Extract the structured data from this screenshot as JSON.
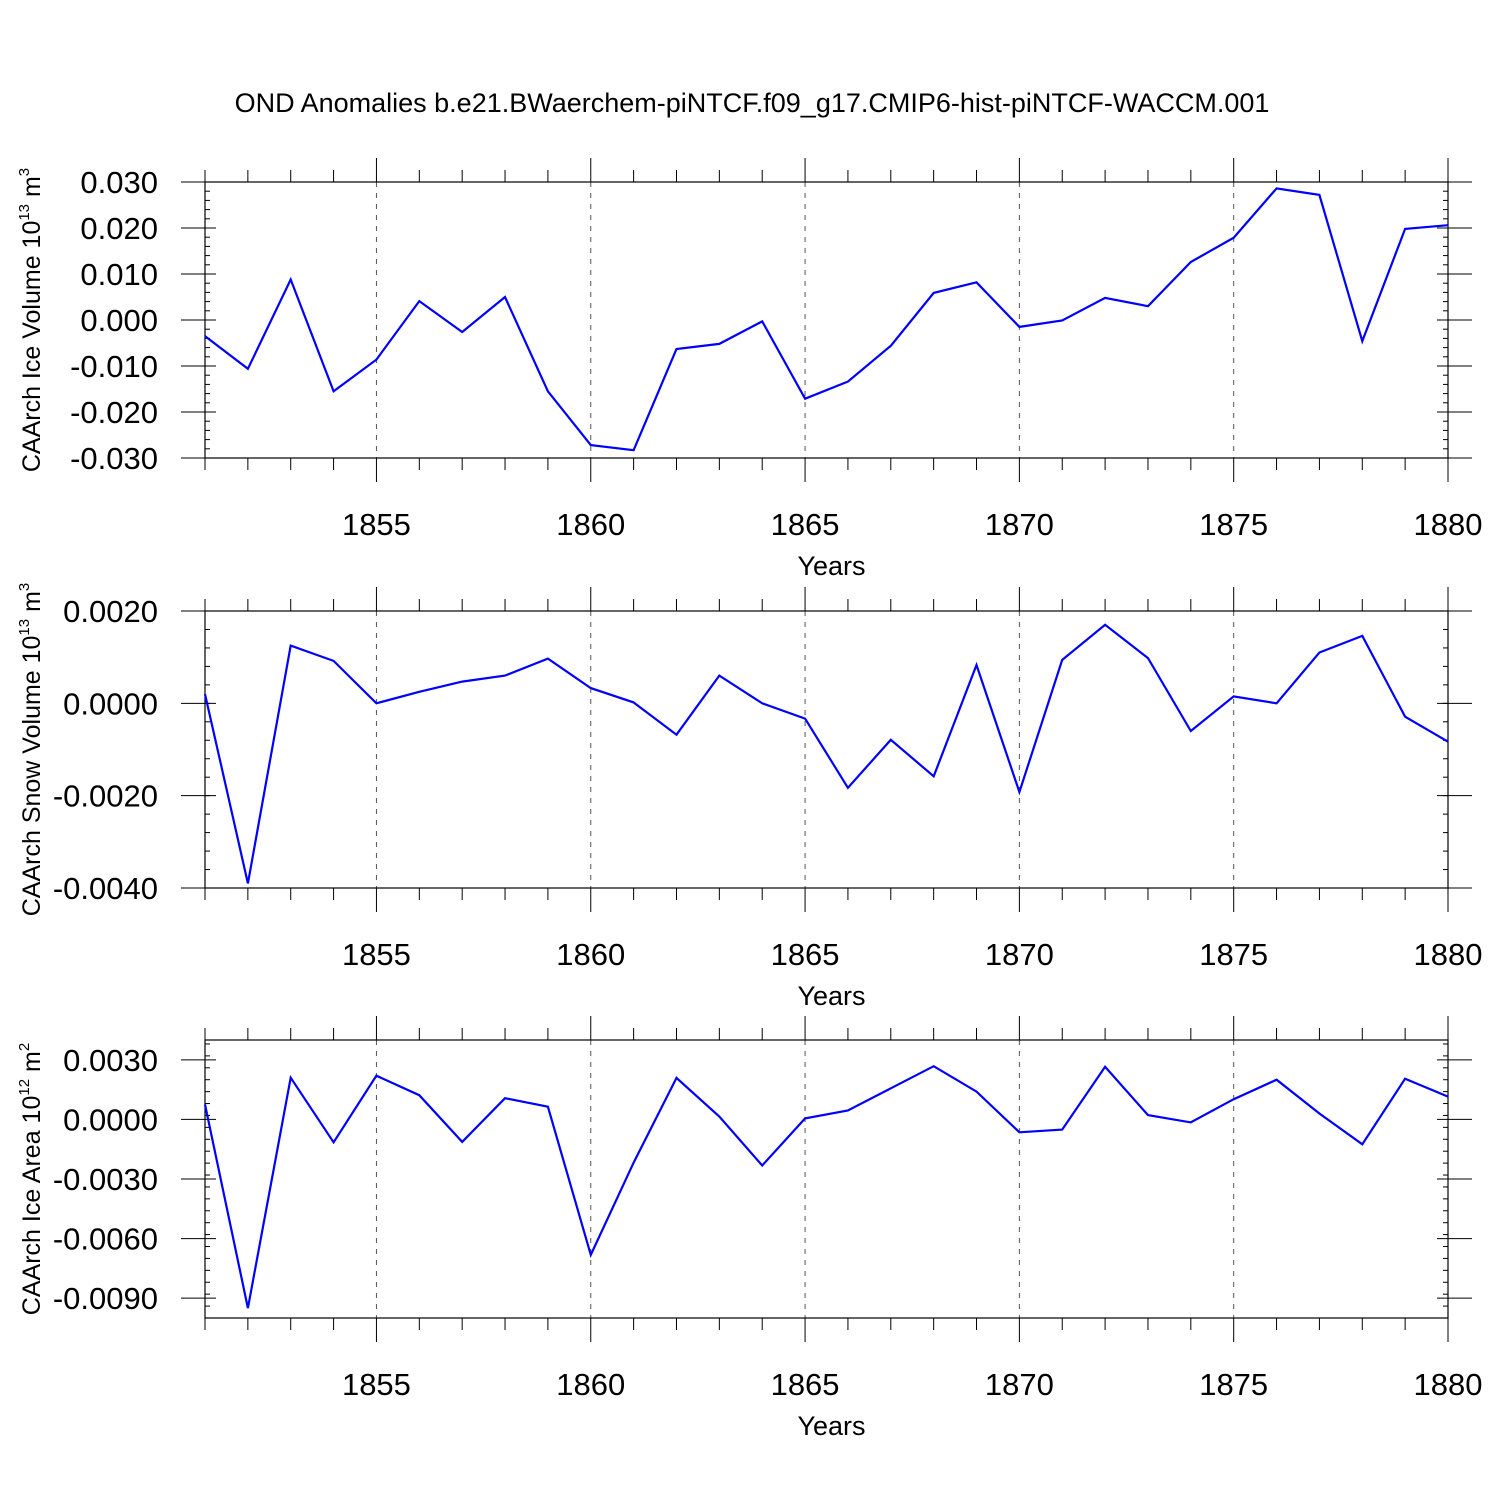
{
  "figure": {
    "title": "OND Anomalies b.e21.BWaerchem-piNTCF.f09_g17.CMIP6-hist-piNTCF-WACCM.001",
    "line_color": "#0000ff",
    "grid_color": "#555555"
  },
  "chart_data": [
    {
      "type": "line",
      "title": "",
      "xlabel": "Years",
      "ylabel": "CAArch Ice Volume 10",
      "ylabel_exp": "13",
      "ylabel_unit": "m",
      "ylabel_unit_exp": "3",
      "xlim": [
        1851,
        1880
      ],
      "ylim": [
        -0.03,
        0.03
      ],
      "x_ticks": [
        1855,
        1860,
        1865,
        1870,
        1875,
        1880
      ],
      "x_tick_labels": [
        "1855",
        "1860",
        "1865",
        "1870",
        "1875",
        "1880"
      ],
      "y_ticks": [
        0.03,
        0.02,
        0.01,
        0.0,
        -0.01,
        -0.02,
        -0.03
      ],
      "y_tick_labels": [
        "0.030",
        "0.020",
        "0.010",
        "0.000",
        "-0.010",
        "-0.020",
        "-0.030"
      ],
      "grid": "vertical dashed at major x ticks",
      "series": [
        {
          "name": "CAArch Ice Volume",
          "x": [
            1851,
            1852,
            1853,
            1854,
            1855,
            1856,
            1857,
            1858,
            1859,
            1860,
            1861,
            1862,
            1863,
            1864,
            1865,
            1866,
            1867,
            1868,
            1869,
            1870,
            1871,
            1872,
            1873,
            1874,
            1875,
            1876,
            1877,
            1878,
            1879,
            1880
          ],
          "values": [
            -0.0035,
            -0.0106,
            0.0088,
            -0.0155,
            -0.0086,
            0.0041,
            -0.0026,
            0.005,
            -0.0155,
            -0.0272,
            -0.0283,
            -0.0063,
            -0.0052,
            -0.0003,
            -0.0171,
            -0.0134,
            -0.0056,
            0.0059,
            0.0082,
            -0.0015,
            -0.0001,
            0.0048,
            0.003,
            0.0126,
            0.0179,
            0.0286,
            0.0272,
            -0.0046,
            0.0198,
            0.0206
          ]
        }
      ]
    },
    {
      "type": "line",
      "title": "",
      "xlabel": "Years",
      "ylabel": "CAArch Snow Volume 10",
      "ylabel_exp": "13",
      "ylabel_unit": "m",
      "ylabel_unit_exp": "3",
      "xlim": [
        1851,
        1880
      ],
      "ylim": [
        -0.004,
        0.002
      ],
      "x_ticks": [
        1855,
        1860,
        1865,
        1870,
        1875,
        1880
      ],
      "x_tick_labels": [
        "1855",
        "1860",
        "1865",
        "1870",
        "1875",
        "1880"
      ],
      "y_ticks": [
        0.002,
        0.0,
        -0.002,
        -0.004
      ],
      "y_tick_labels": [
        "0.0020",
        "0.0000",
        "-0.0020",
        "-0.0040"
      ],
      "grid": "vertical dashed at major x ticks",
      "series": [
        {
          "name": "CAArch Snow Volume",
          "x": [
            1851,
            1852,
            1853,
            1854,
            1855,
            1856,
            1857,
            1858,
            1859,
            1860,
            1861,
            1862,
            1863,
            1864,
            1865,
            1866,
            1867,
            1868,
            1869,
            1870,
            1871,
            1872,
            1873,
            1874,
            1875,
            1876,
            1877,
            1878,
            1879,
            1880
          ],
          "values": [
            0.0002,
            -0.0039,
            0.00125,
            0.00092,
            0.0,
            0.00025,
            0.00047,
            0.0006,
            0.00097,
            0.00033,
            2e-05,
            -0.00068,
            0.0006,
            0.0,
            -0.00033,
            -0.00183,
            -0.00079,
            -0.00158,
            0.00083,
            -0.00192,
            0.00094,
            0.0017,
            0.00098,
            -0.0006,
            0.00015,
            0.0,
            0.0011,
            0.00146,
            -0.00029,
            -0.00083
          ]
        }
      ]
    },
    {
      "type": "line",
      "title": "",
      "xlabel": "Years",
      "ylabel": "CAArch Ice Area 10",
      "ylabel_exp": "12",
      "ylabel_unit": "m",
      "ylabel_unit_exp": "2",
      "xlim": [
        1851,
        1880
      ],
      "ylim": [
        -0.01,
        0.004
      ],
      "x_ticks": [
        1855,
        1860,
        1865,
        1870,
        1875,
        1880
      ],
      "x_tick_labels": [
        "1855",
        "1860",
        "1865",
        "1870",
        "1875",
        "1880"
      ],
      "y_ticks": [
        0.003,
        0.0,
        -0.003,
        -0.006,
        -0.009
      ],
      "y_tick_labels": [
        "0.0030",
        "0.0000",
        "-0.0030",
        "-0.0060",
        "-0.0090"
      ],
      "grid": "vertical dashed at major x ticks",
      "series": [
        {
          "name": "CAArch Ice Area",
          "x": [
            1851,
            1852,
            1853,
            1854,
            1855,
            1856,
            1857,
            1858,
            1859,
            1860,
            1861,
            1862,
            1863,
            1864,
            1865,
            1866,
            1867,
            1868,
            1869,
            1870,
            1871,
            1872,
            1873,
            1874,
            1875,
            1876,
            1877,
            1878,
            1879,
            1880
          ],
          "values": [
            0.00075,
            -0.0095,
            0.0021,
            -0.00115,
            0.0022,
            0.00122,
            -0.00113,
            0.00107,
            0.00064,
            -0.00682,
            -0.00218,
            0.00209,
            0.00015,
            -0.00232,
            5e-05,
            0.00045,
            0.00157,
            0.00268,
            0.0014,
            -0.00065,
            -0.00051,
            0.00265,
            0.00022,
            -0.00015,
            0.00102,
            0.002,
            0.0003,
            -0.00125,
            0.00205,
            0.00115
          ]
        }
      ]
    }
  ]
}
